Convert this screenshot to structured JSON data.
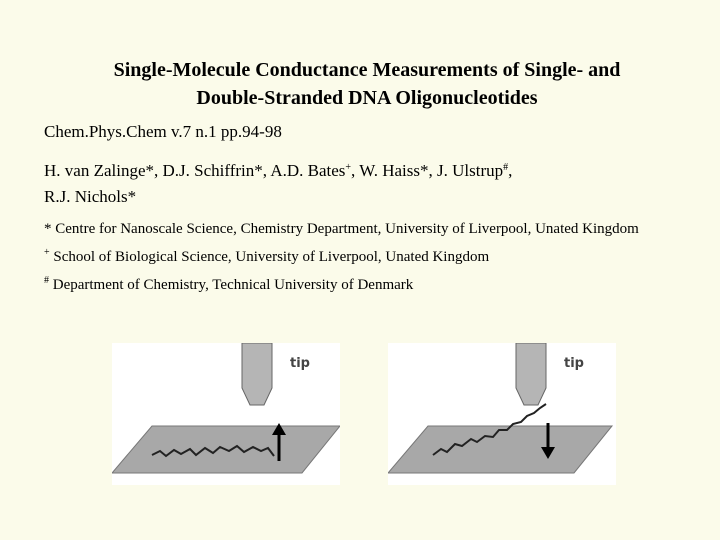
{
  "title": [
    "Single-Molecule Conductance Measurements of Single- and",
    "Double-Stranded DNA Oligonucleotides"
  ],
  "citation": "Chem.Phys.Chem v.7 n.1 pp.94-98",
  "authors": [
    [
      {
        "text": "H. van Zalinge*, D.J. Schiffrin*, A.D. Bates"
      },
      {
        "sup": "+"
      },
      {
        "text": ", W. Haiss*, J. Ulstrup"
      },
      {
        "sup": "#"
      },
      {
        "text": ","
      }
    ],
    [
      {
        "text": "R.J. Nichols*"
      }
    ]
  ],
  "affiliations": [
    {
      "mark": "*",
      "text": "Centre for Nanoscale Science, Chemistry Department, University of Liverpool, Unated Kingdom"
    },
    {
      "mark": "+",
      "text": "School of Biological Science, University of Liverpool, Unated Kingdom"
    },
    {
      "mark": "#",
      "text": "Department of Chemistry, Technical University of Denmark"
    }
  ],
  "figures": [
    {
      "label": "tip"
    },
    {
      "label": "tip"
    }
  ]
}
